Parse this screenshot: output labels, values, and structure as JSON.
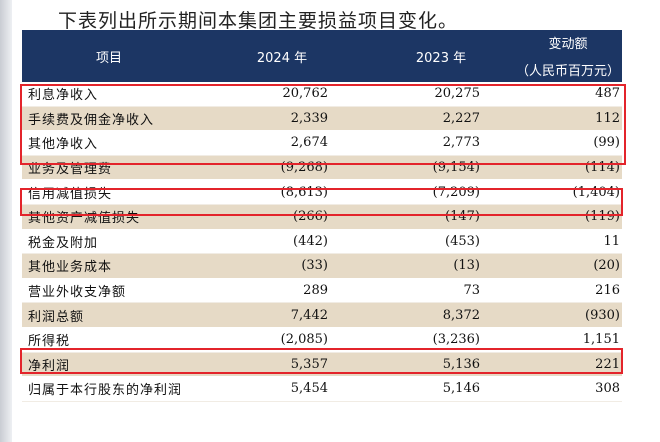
{
  "intro_text": "下表列出所示期间本集团主要损益项目变化。",
  "header": {
    "item": "项目",
    "y2024": "2024 年",
    "y2023": "2023 年",
    "change": "变动额",
    "change_unit": "（人民币百万元）"
  },
  "rows": [
    {
      "label": "利息净收入",
      "v2024": "20,762",
      "v2023": "20,275",
      "change": "487",
      "shade": "white"
    },
    {
      "label": "手续费及佣金净收入",
      "v2024": "2,339",
      "v2023": "2,227",
      "change": "112",
      "shade": "beige"
    },
    {
      "label": "其他净收入",
      "v2024": "2,674",
      "v2023": "2,773",
      "change": "(99)",
      "shade": "white"
    },
    {
      "label": "业务及管理费",
      "v2024": "(9,268)",
      "v2023": "(9,154)",
      "change": "(114)",
      "shade": "beige"
    },
    {
      "label": "信用减值损失",
      "v2024": "(8,613)",
      "v2023": "(7,209)",
      "change": "(1,404)",
      "shade": "white"
    },
    {
      "label": "其他资产减值损失",
      "v2024": "(266)",
      "v2023": "(147)",
      "change": "(119)",
      "shade": "beige"
    },
    {
      "label": "税金及附加",
      "v2024": "(442)",
      "v2023": "(453)",
      "change": "11",
      "shade": "white"
    },
    {
      "label": "其他业务成本",
      "v2024": "(33)",
      "v2023": "(13)",
      "change": "(20)",
      "shade": "beige"
    },
    {
      "label": "营业外收支净额",
      "v2024": "289",
      "v2023": "73",
      "change": "216",
      "shade": "white"
    },
    {
      "label": "利润总额",
      "v2024": "7,442",
      "v2023": "8,372",
      "change": "(930)",
      "shade": "beige"
    },
    {
      "label": "所得税",
      "v2024": "(2,085)",
      "v2023": "(3,236)",
      "change": "1,151",
      "shade": "white"
    },
    {
      "label": "净利润",
      "v2024": "5,357",
      "v2023": "5,136",
      "change": "221",
      "shade": "beige"
    },
    {
      "label": "归属于本行股东的净利润",
      "v2024": "5,454",
      "v2023": "5,146",
      "change": "308",
      "shade": "white"
    }
  ],
  "highlight_color": "#e3242b",
  "header_color": "#1c3664",
  "shade_color": "#e6dac6"
}
